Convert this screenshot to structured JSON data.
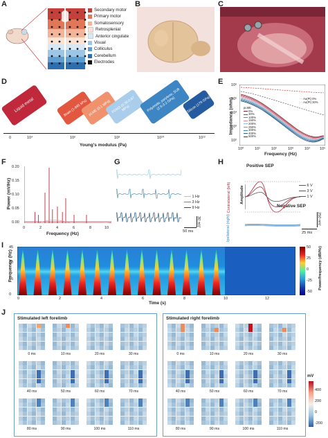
{
  "panels": {
    "a": "A",
    "b": "B",
    "c": "C",
    "d": "D",
    "e": "E",
    "f": "F",
    "g": "G",
    "h": "H",
    "i": "I",
    "j": "J"
  },
  "panel_a": {
    "legend": [
      {
        "label": "Secondary motor",
        "color": "#c4403a"
      },
      {
        "label": "Primary motor",
        "color": "#e07858"
      },
      {
        "label": "Somatosensory",
        "color": "#f3b49a"
      },
      {
        "label": "Retrosplenial",
        "color": "#fbe2d2"
      },
      {
        "label": "Anterior cingulate",
        "color": "#d8e8f4"
      },
      {
        "label": "Visual",
        "color": "#9dc6e6"
      },
      {
        "label": "Colliculus",
        "color": "#5f9ecf"
      },
      {
        "label": "Cerebellum",
        "color": "#2d6fae"
      },
      {
        "label": "Electrodes",
        "color": "#111111"
      }
    ]
  },
  "panel_d": {
    "xlabel": "Young's modulus (Pa)",
    "ticks": [
      "0",
      "10⁴",
      "10⁶",
      "10⁸",
      "10¹⁰",
      "10¹²"
    ],
    "materials": [
      {
        "label": "Liquid metal",
        "color": "#c0283c"
      },
      {
        "label": "Brain (1-695 kPa)",
        "color": "#e2573f"
      },
      {
        "label": "pLME (0.1 MPa)",
        "color": "#f0926e"
      },
      {
        "label": "PDMS (0.36-0.87 MPa)",
        "color": "#a9cdea"
      },
      {
        "label": "Polyimide, parylene, SU8 (2.5-3.2 GPa)",
        "color": "#3d86c3"
      },
      {
        "label": "Silicon (179 GPa)",
        "color": "#245c9f"
      }
    ]
  },
  "panel_e": {
    "ylabel": "Impedance (ohm)",
    "xlabel": "Frequency (Hz)",
    "yticks": [
      "10⁶",
      "10⁵",
      "10⁴",
      "10³",
      "10²"
    ],
    "xticks": [
      "10⁰",
      "10¹",
      "10²",
      "10³",
      "10⁴",
      "10⁵"
    ],
    "legend_top": [
      "Au(Pt) 0%",
      "Au(Pt) 30%"
    ],
    "legend_title": "pLME",
    "legend_strains": [
      "0%",
      "30%",
      "100%",
      "150%",
      "200%",
      "250%",
      "300%",
      "400%",
      "500%"
    ]
  },
  "panel_f": {
    "ylabel": "Power (mV/Hz)",
    "xlabel": "Frequency (Hz)",
    "yticks": [
      "0.20",
      "0.15",
      "0.10",
      "0.05",
      "0.00"
    ],
    "xticks": [
      "0",
      "2",
      "4",
      "6",
      "8",
      "10"
    ]
  },
  "panel_g": {
    "legend": [
      "1 Hz",
      "3 Hz",
      "9 Hz"
    ],
    "scale_v": "30 mV",
    "scale_t": "50 ms"
  },
  "panel_h": {
    "positive": "Positive SEP",
    "negative": "Negative SEP",
    "amplitude": "Amplitude",
    "contra": "Contralateral (left)",
    "ipsi": "Ipsilateral (right)",
    "legend": [
      "6 V",
      "3 V",
      "1 V"
    ],
    "scale_v": "250 mV",
    "scale_t": "25 ms"
  },
  "panel_i": {
    "ylabel": "Frequency (Hz)",
    "xlabel": "Time (s)",
    "yticks": [
      "45",
      "30",
      "15",
      "0"
    ],
    "xticks": [
      "0",
      "2",
      "4",
      "6",
      "8",
      "10",
      "12"
    ],
    "cbar_label": "Power/frequency (dB/Hz)",
    "cbar_ticks": [
      "50",
      "25",
      "0",
      "-25",
      "-50"
    ]
  },
  "panel_j": {
    "left_title": "Stimulated left forelimb",
    "right_title": "Stimulated right forelimb",
    "times": [
      "0 ms",
      "10 ms",
      "20 ms",
      "30 ms",
      "40 ms",
      "50 ms",
      "60 ms",
      "70 ms",
      "80 ms",
      "90 ms",
      "100 ms",
      "110 ms"
    ],
    "cbar_unit": "mV",
    "cbar_ticks": [
      "400",
      "200",
      "0",
      "-200"
    ]
  }
}
